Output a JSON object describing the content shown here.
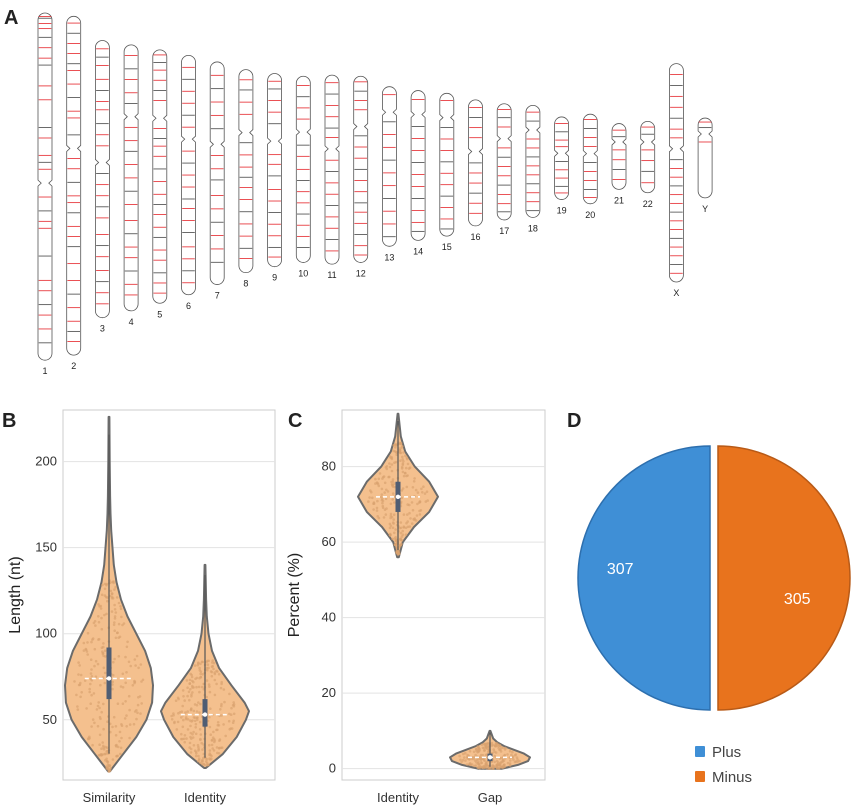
{
  "figure": {
    "panels": [
      "A",
      "B",
      "C",
      "D"
    ]
  },
  "colors": {
    "band": "#e5242a",
    "outline": "#555555",
    "violin_fill": "#f4c08e",
    "violin_stroke": "#6b6b6b",
    "plus": "#3f8fd6",
    "minus": "#e8731d"
  },
  "chart_data": [
    {
      "panel": "A",
      "type": "ideogram",
      "title": "",
      "chromosomes": [
        {
          "name": "1",
          "length": 248,
          "centromere": 0.49,
          "bands": [
            0.01,
            0.015,
            0.03,
            0.045,
            0.07,
            0.1,
            0.13,
            0.15,
            0.21,
            0.25,
            0.33,
            0.36,
            0.41,
            0.43,
            0.45,
            0.53,
            0.57,
            0.6,
            0.62,
            0.7,
            0.77,
            0.8,
            0.84,
            0.87,
            0.91,
            0.95
          ]
        },
        {
          "name": "2",
          "length": 242,
          "centromere": 0.39,
          "bands": [
            0.02,
            0.05,
            0.08,
            0.11,
            0.14,
            0.16,
            0.2,
            0.24,
            0.28,
            0.3,
            0.35,
            0.42,
            0.45,
            0.49,
            0.53,
            0.55,
            0.58,
            0.62,
            0.65,
            0.68,
            0.73,
            0.78,
            0.82,
            0.86,
            0.9,
            0.93,
            0.96
          ]
        },
        {
          "name": "3",
          "length": 198,
          "centromere": 0.44,
          "bands": [
            0.03,
            0.06,
            0.09,
            0.14,
            0.18,
            0.22,
            0.25,
            0.3,
            0.34,
            0.38,
            0.48,
            0.52,
            0.56,
            0.6,
            0.64,
            0.7,
            0.74,
            0.78,
            0.83,
            0.87,
            0.91,
            0.95
          ]
        },
        {
          "name": "4",
          "length": 190,
          "centromere": 0.27,
          "bands": [
            0.04,
            0.09,
            0.13,
            0.18,
            0.22,
            0.31,
            0.36,
            0.4,
            0.45,
            0.5,
            0.55,
            0.6,
            0.66,
            0.71,
            0.76,
            0.8,
            0.85,
            0.9,
            0.94
          ]
        },
        {
          "name": "5",
          "length": 181,
          "centromere": 0.27,
          "bands": [
            0.02,
            0.05,
            0.08,
            0.12,
            0.16,
            0.2,
            0.31,
            0.35,
            0.38,
            0.42,
            0.47,
            0.52,
            0.57,
            0.61,
            0.65,
            0.7,
            0.74,
            0.79,
            0.83,
            0.88,
            0.92,
            0.96
          ]
        },
        {
          "name": "6",
          "length": 171,
          "centromere": 0.35,
          "bands": [
            0.05,
            0.1,
            0.15,
            0.2,
            0.25,
            0.3,
            0.4,
            0.45,
            0.5,
            0.55,
            0.6,
            0.64,
            0.69,
            0.74,
            0.8,
            0.85,
            0.9,
            0.95
          ]
        },
        {
          "name": "7",
          "length": 159,
          "centromere": 0.37,
          "bands": [
            0.06,
            0.12,
            0.18,
            0.24,
            0.3,
            0.42,
            0.48,
            0.53,
            0.6,
            0.66,
            0.72,
            0.78,
            0.84,
            0.9
          ]
        },
        {
          "name": "8",
          "length": 145,
          "centromere": 0.31,
          "bands": [
            0.05,
            0.1,
            0.16,
            0.22,
            0.36,
            0.42,
            0.48,
            0.53,
            0.58,
            0.64,
            0.7,
            0.76,
            0.82,
            0.88,
            0.93
          ]
        },
        {
          "name": "9",
          "length": 138,
          "centromere": 0.35,
          "bands": [
            0.04,
            0.08,
            0.14,
            0.2,
            0.26,
            0.42,
            0.47,
            0.53,
            0.6,
            0.66,
            0.72,
            0.78,
            0.84,
            0.9,
            0.95
          ]
        },
        {
          "name": "10",
          "length": 133,
          "centromere": 0.3,
          "bands": [
            0.05,
            0.11,
            0.17,
            0.23,
            0.37,
            0.43,
            0.5,
            0.56,
            0.62,
            0.68,
            0.74,
            0.8,
            0.86,
            0.92
          ]
        },
        {
          "name": "11",
          "length": 135,
          "centromere": 0.39,
          "bands": [
            0.04,
            0.1,
            0.16,
            0.22,
            0.28,
            0.33,
            0.45,
            0.51,
            0.57,
            0.63,
            0.69,
            0.75,
            0.81,
            0.87,
            0.93
          ]
        },
        {
          "name": "12",
          "length": 133,
          "centromere": 0.27,
          "bands": [
            0.03,
            0.08,
            0.13,
            0.18,
            0.32,
            0.38,
            0.44,
            0.5,
            0.56,
            0.62,
            0.68,
            0.73,
            0.79,
            0.85,
            0.91,
            0.96
          ]
        },
        {
          "name": "13",
          "length": 114,
          "centromere": 0.16,
          "bands": [
            0.05,
            0.22,
            0.3,
            0.38,
            0.46,
            0.54,
            0.62,
            0.7,
            0.78,
            0.86,
            0.94
          ]
        },
        {
          "name": "14",
          "length": 107,
          "centromere": 0.16,
          "bands": [
            0.06,
            0.24,
            0.32,
            0.4,
            0.48,
            0.56,
            0.64,
            0.72,
            0.8,
            0.88,
            0.94
          ]
        },
        {
          "name": "15",
          "length": 102,
          "centromere": 0.17,
          "bands": [
            0.05,
            0.24,
            0.32,
            0.4,
            0.48,
            0.56,
            0.64,
            0.72,
            0.8,
            0.88,
            0.95
          ]
        },
        {
          "name": "16",
          "length": 90,
          "centromere": 0.41,
          "bands": [
            0.06,
            0.14,
            0.22,
            0.3,
            0.5,
            0.58,
            0.66,
            0.74,
            0.82,
            0.9
          ]
        },
        {
          "name": "17",
          "length": 83,
          "centromere": 0.3,
          "bands": [
            0.05,
            0.12,
            0.2,
            0.38,
            0.46,
            0.54,
            0.62,
            0.7,
            0.78,
            0.86,
            0.93
          ]
        },
        {
          "name": "18",
          "length": 80,
          "centromere": 0.22,
          "bands": [
            0.06,
            0.14,
            0.3,
            0.38,
            0.46,
            0.54,
            0.62,
            0.7,
            0.78,
            0.86,
            0.94
          ]
        },
        {
          "name": "19",
          "length": 59,
          "centromere": 0.44,
          "bands": [
            0.08,
            0.18,
            0.28,
            0.36,
            0.54,
            0.64,
            0.74,
            0.84,
            0.92
          ]
        },
        {
          "name": "20",
          "length": 64,
          "centromere": 0.44,
          "bands": [
            0.06,
            0.16,
            0.26,
            0.36,
            0.54,
            0.64,
            0.74,
            0.84,
            0.93
          ]
        },
        {
          "name": "21",
          "length": 47,
          "centromere": 0.28,
          "bands": [
            0.1,
            0.2,
            0.4,
            0.55,
            0.7,
            0.85
          ]
        },
        {
          "name": "22",
          "length": 51,
          "centromere": 0.29,
          "bands": [
            0.08,
            0.18,
            0.4,
            0.55,
            0.7,
            0.86
          ]
        },
        {
          "name": "X",
          "length": 156,
          "centromere": 0.39,
          "bands": [
            0.05,
            0.1,
            0.15,
            0.2,
            0.25,
            0.3,
            0.34,
            0.44,
            0.48,
            0.52,
            0.56,
            0.6,
            0.64,
            0.68,
            0.72,
            0.76,
            0.8,
            0.84,
            0.88,
            0.92,
            0.96
          ]
        },
        {
          "name": "Y",
          "length": 57,
          "centromere": 0.2,
          "bands": [
            0.05,
            0.12,
            0.3
          ]
        }
      ]
    },
    {
      "panel": "B",
      "type": "violin",
      "title": "",
      "xlabel": "",
      "ylabel": "Length (nt)",
      "categories": [
        "Similarity",
        "Identity"
      ],
      "ylim": [
        15,
        230
      ],
      "yticks": [
        50,
        100,
        150,
        200
      ],
      "series": [
        {
          "name": "Similarity",
          "min": 20,
          "max": 226,
          "median": 74,
          "q1": 62,
          "q3": 92,
          "density": [
            [
              20,
              0.02
            ],
            [
              30,
              0.32
            ],
            [
              40,
              0.62
            ],
            [
              50,
              0.85
            ],
            [
              60,
              0.98
            ],
            [
              70,
              1.0
            ],
            [
              80,
              0.95
            ],
            [
              90,
              0.82
            ],
            [
              100,
              0.62
            ],
            [
              110,
              0.42
            ],
            [
              120,
              0.27
            ],
            [
              130,
              0.17
            ],
            [
              140,
              0.11
            ],
            [
              150,
              0.08
            ],
            [
              160,
              0.05
            ],
            [
              170,
              0.035
            ],
            [
              180,
              0.025
            ],
            [
              200,
              0.015
            ],
            [
              226,
              0.01
            ]
          ]
        },
        {
          "name": "Identity",
          "min": 22,
          "max": 140,
          "median": 53,
          "q1": 46,
          "q3": 62,
          "density": [
            [
              22,
              0.02
            ],
            [
              30,
              0.4
            ],
            [
              40,
              0.72
            ],
            [
              50,
              0.93
            ],
            [
              55,
              1.0
            ],
            [
              60,
              0.9
            ],
            [
              70,
              0.6
            ],
            [
              80,
              0.32
            ],
            [
              90,
              0.16
            ],
            [
              100,
              0.08
            ],
            [
              110,
              0.04
            ],
            [
              120,
              0.025
            ],
            [
              140,
              0.01
            ]
          ]
        }
      ]
    },
    {
      "panel": "C",
      "type": "violin",
      "title": "",
      "xlabel": "",
      "ylabel": "Percent (%)",
      "categories": [
        "Identity",
        "Gap"
      ],
      "ylim": [
        -3,
        95
      ],
      "yticks": [
        0,
        20,
        40,
        60,
        80
      ],
      "series": [
        {
          "name": "Identity",
          "min": 56,
          "max": 94,
          "median": 72,
          "q1": 68,
          "q3": 76,
          "density": [
            [
              56,
              0.02
            ],
            [
              60,
              0.12
            ],
            [
              64,
              0.4
            ],
            [
              68,
              0.78
            ],
            [
              72,
              1.0
            ],
            [
              76,
              0.78
            ],
            [
              80,
              0.42
            ],
            [
              84,
              0.18
            ],
            [
              88,
              0.07
            ],
            [
              94,
              0.01
            ]
          ]
        },
        {
          "name": "Gap",
          "min": 0,
          "max": 10,
          "median": 3,
          "q1": 2,
          "q3": 4,
          "density": [
            [
              0,
              0.3
            ],
            [
              1,
              0.7
            ],
            [
              2,
              0.95
            ],
            [
              3,
              1.0
            ],
            [
              4,
              0.85
            ],
            [
              5,
              0.6
            ],
            [
              6,
              0.35
            ],
            [
              7,
              0.18
            ],
            [
              8,
              0.08
            ],
            [
              10,
              0.01
            ]
          ]
        }
      ]
    },
    {
      "panel": "D",
      "type": "pie",
      "title": "",
      "labels": [
        "Plus",
        "Minus"
      ],
      "values": [
        307,
        305
      ],
      "colors": [
        "#3f8fd6",
        "#e8731d"
      ],
      "legend": "bottom"
    }
  ]
}
